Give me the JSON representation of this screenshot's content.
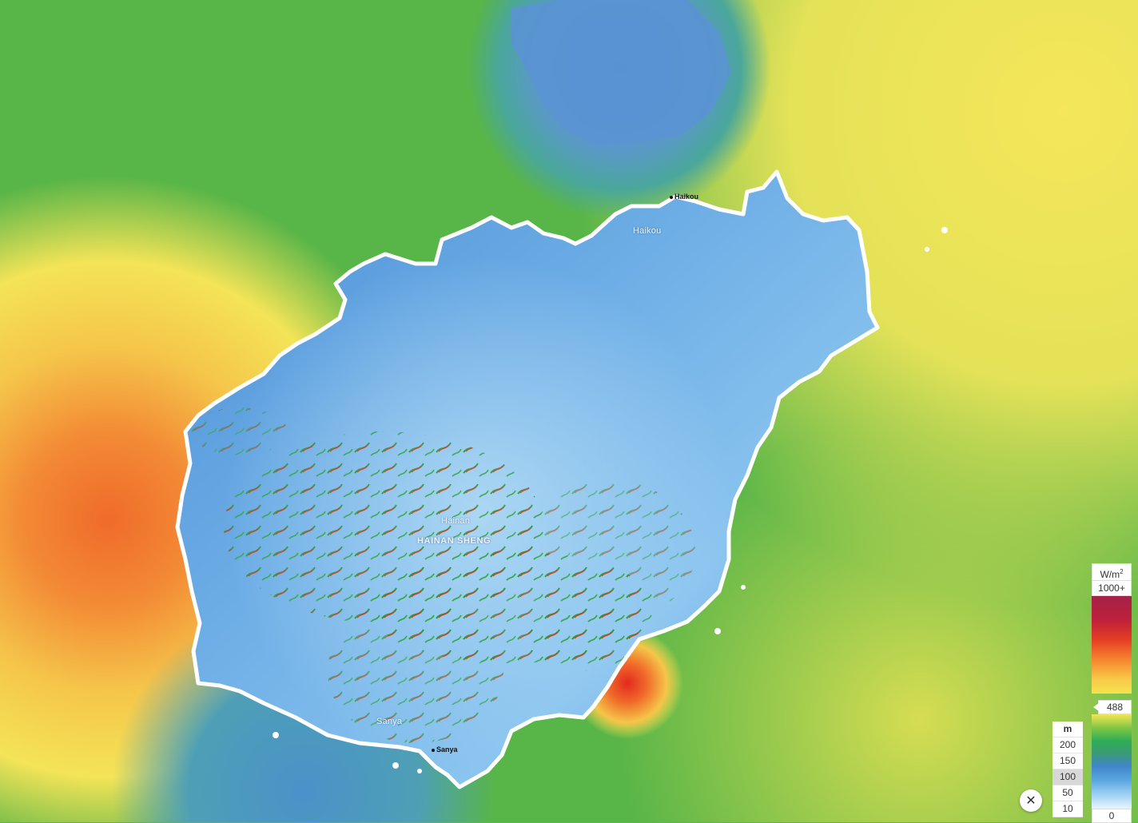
{
  "map": {
    "region_label": "HAINAN SHENG",
    "places": {
      "haikou": "Haikou",
      "hainan": "Hainan",
      "sanya": "Sanya"
    },
    "city_markers": {
      "haikou": "Haikou",
      "sanya": "Sanya"
    }
  },
  "controls": {
    "close_glyph": "✕"
  },
  "height_scale": {
    "unit": "m",
    "levels": [
      "200",
      "150",
      "100",
      "50",
      "10"
    ],
    "selected": "100"
  },
  "legend": {
    "unit": "W/m",
    "unit_sup": "2",
    "top_label": "1000+",
    "marker_value": "488",
    "bottom_label": "0",
    "colors": {
      "max": "#a3234a",
      "high": "#e33f24",
      "mid": "#f5e24f",
      "green": "#2fae55",
      "blue": "#3f86c9",
      "low": "#e6f5ff"
    }
  }
}
